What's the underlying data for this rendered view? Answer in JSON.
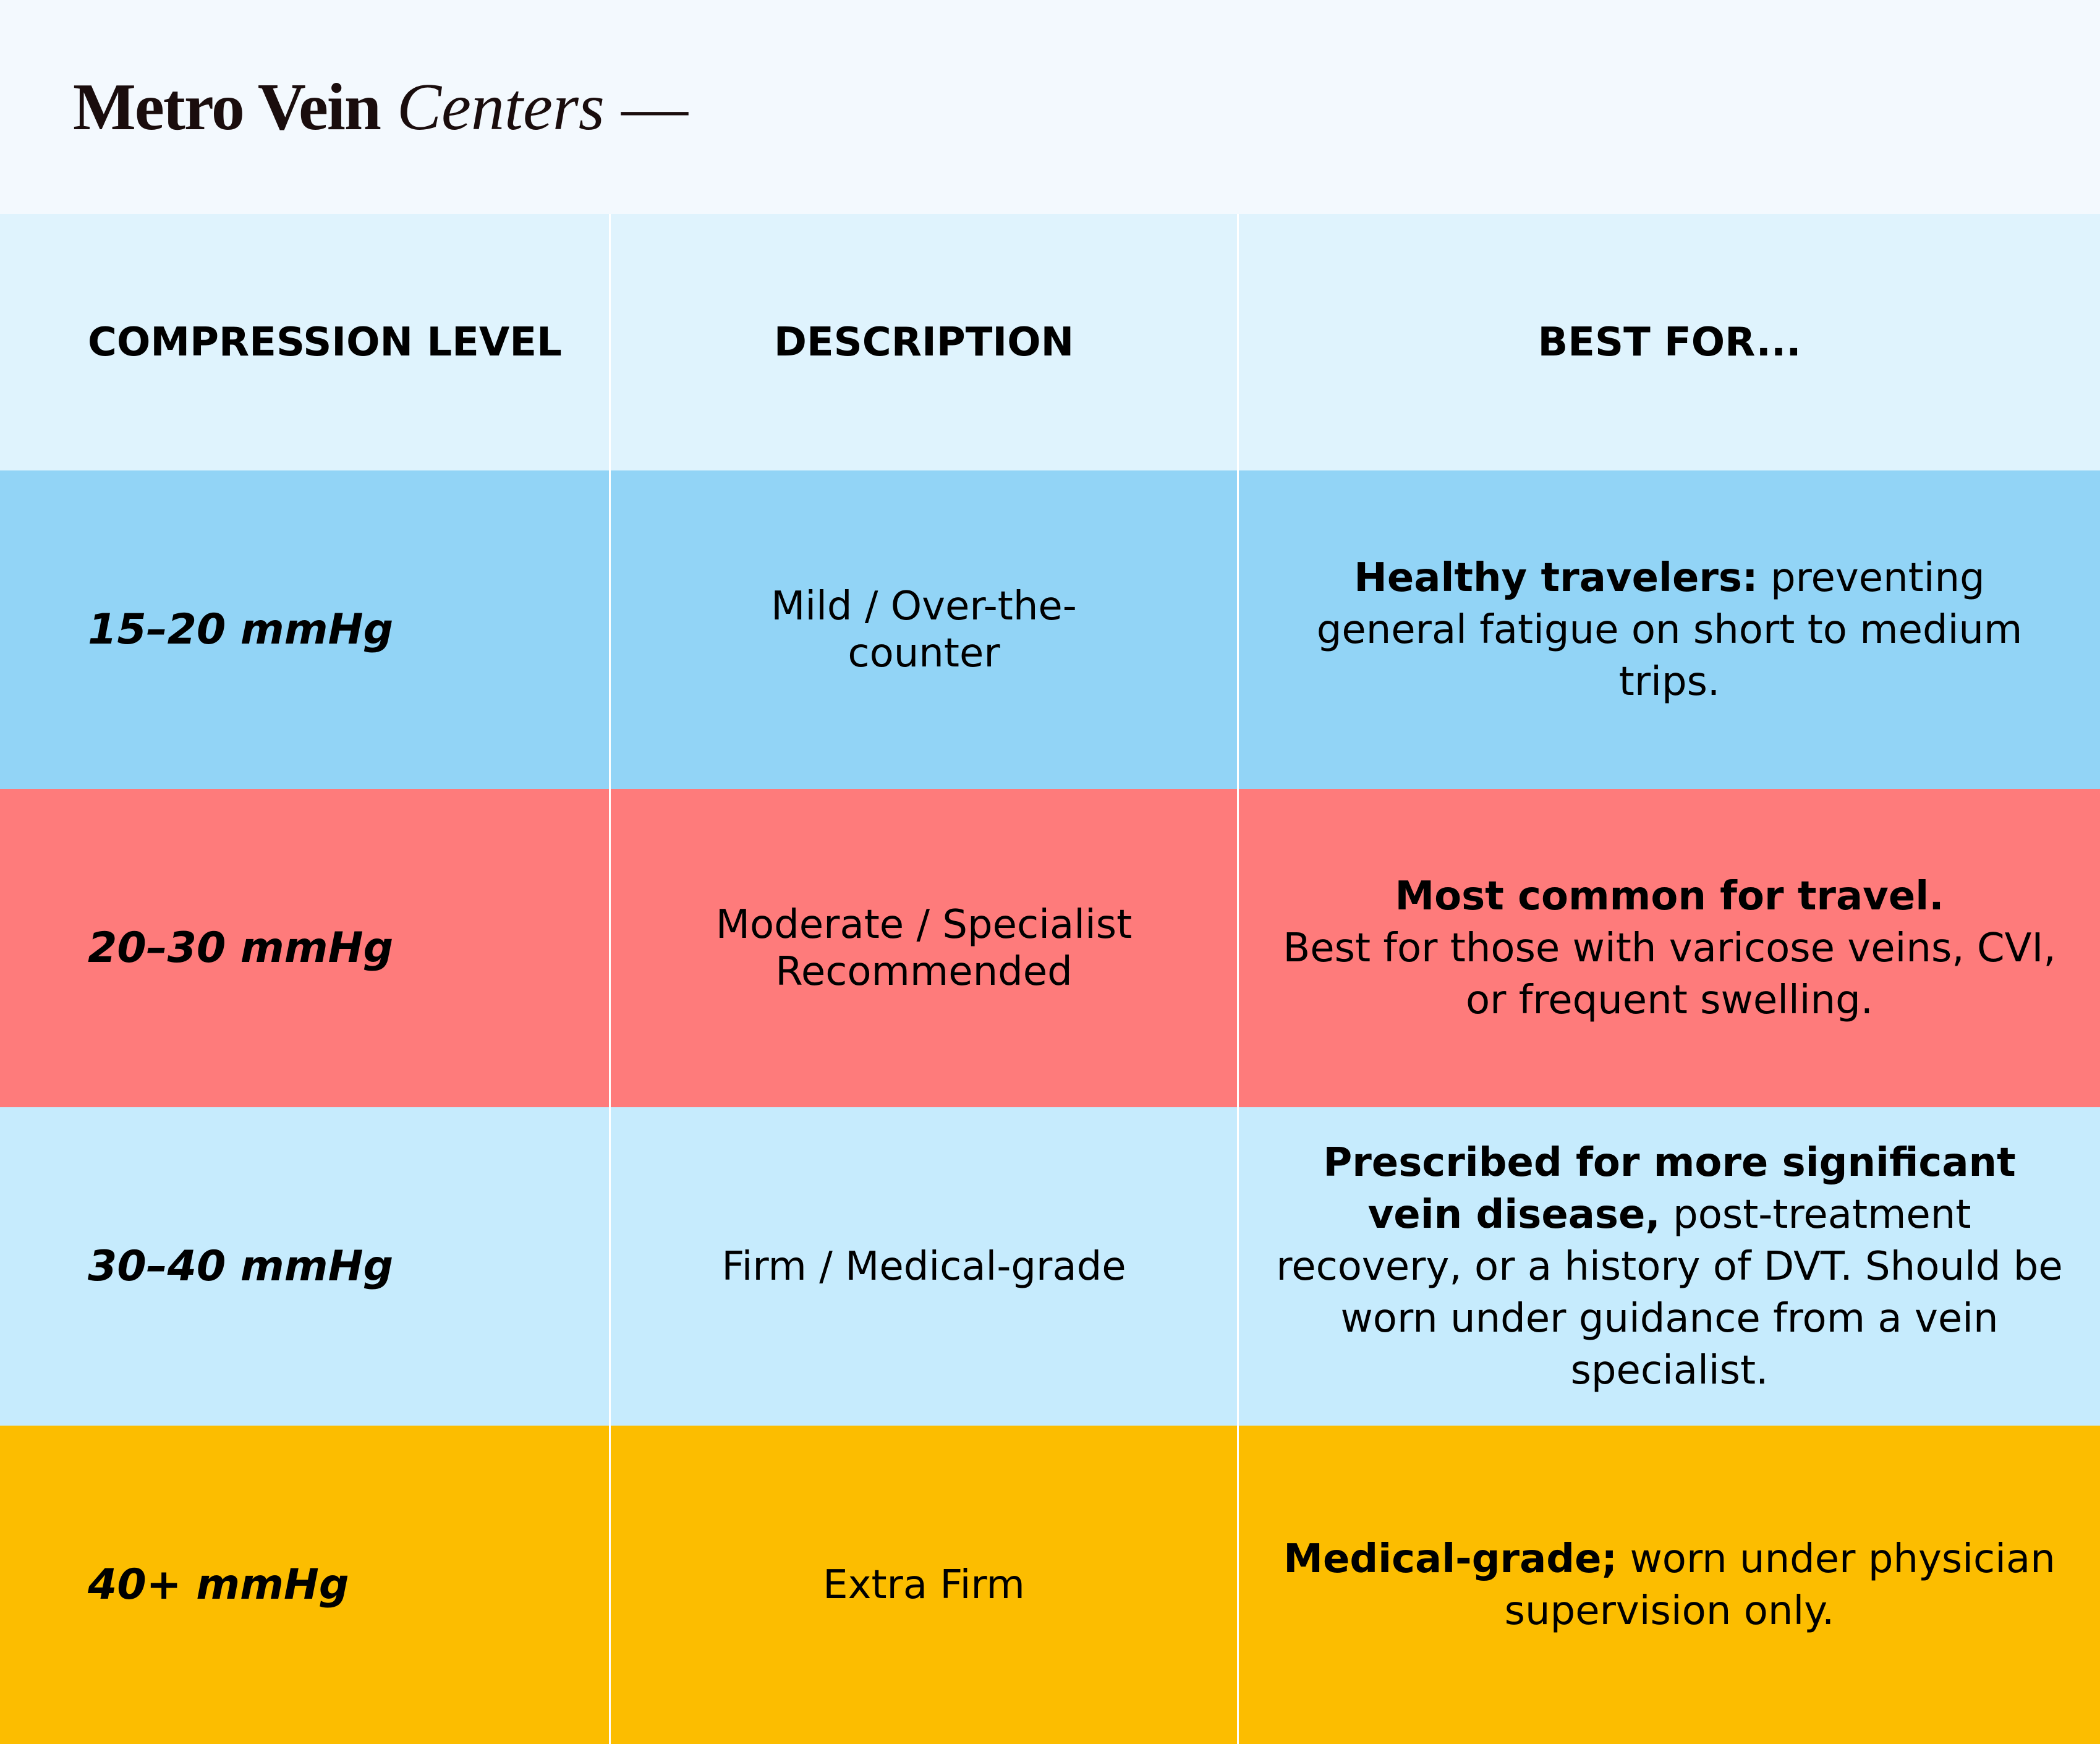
{
  "brand": {
    "bold": "Metro Vein",
    "italic": "Centers",
    "dash": "—"
  },
  "table": {
    "headers": [
      "COMPRESSION LEVEL",
      "DESCRIPTION",
      "BEST FOR..."
    ],
    "rows": [
      {
        "level": "15–20 mmHg",
        "description": "Mild / Over-the-counter",
        "best_bold": "Healthy travelers:",
        "best_rest": "preventing general fatigue on short to medium trips.",
        "color": "#92d4f6"
      },
      {
        "level": "20–30 mmHg",
        "description": "Moderate / Specialist Recommended",
        "best_bold": "Most common for travel.",
        "best_rest": "Best for those with varicose veins, CVI, or frequent swelling.",
        "color": "#fe7b7b"
      },
      {
        "level": "30–40 mmHg",
        "description": "Firm / Medical-grade",
        "best_bold": "Prescribed for more significant vein disease,",
        "best_rest": "post-treatment recovery, or a history of DVT. Should be worn under guidance from a vein specialist.",
        "color": "#c6ebfd"
      },
      {
        "level": "40+ mmHg",
        "description": "Extra Firm",
        "best_bold": "Medical-grade;",
        "best_rest": "worn under physician supervision only.",
        "color": "#fcbd00"
      }
    ]
  }
}
